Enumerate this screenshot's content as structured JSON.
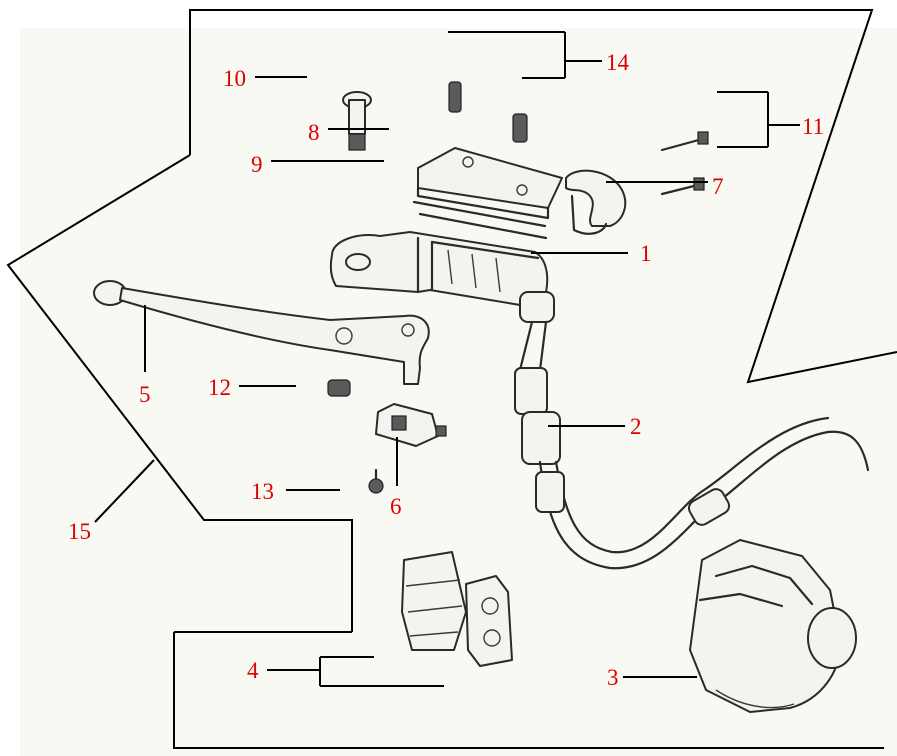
{
  "colors": {
    "paper": "#f7f9f2",
    "label": "#dd0000",
    "line": "#000000"
  },
  "callouts": [
    {
      "id": "1",
      "text": "1"
    },
    {
      "id": "2",
      "text": "2"
    },
    {
      "id": "3",
      "text": "3"
    },
    {
      "id": "4",
      "text": "4"
    },
    {
      "id": "5",
      "text": "5"
    },
    {
      "id": "6",
      "text": "6"
    },
    {
      "id": "7",
      "text": "7"
    },
    {
      "id": "8",
      "text": "8"
    },
    {
      "id": "9",
      "text": "9"
    },
    {
      "id": "10",
      "text": "10"
    },
    {
      "id": "11",
      "text": "11"
    },
    {
      "id": "12",
      "text": "12"
    },
    {
      "id": "13",
      "text": "13"
    },
    {
      "id": "14",
      "text": "14"
    },
    {
      "id": "15",
      "text": "15"
    }
  ],
  "parts": [
    "master-cylinder",
    "brake-hose",
    "brake-caliper",
    "brake-pads",
    "brake-lever",
    "brake-switch",
    "holder-clamp",
    "pivot-bolt",
    "reservoir-diaphragm",
    "reservoir-cap",
    "holder-screws",
    "lever-nut",
    "switch-screw",
    "cap-screws",
    "brake-assembly-group"
  ]
}
